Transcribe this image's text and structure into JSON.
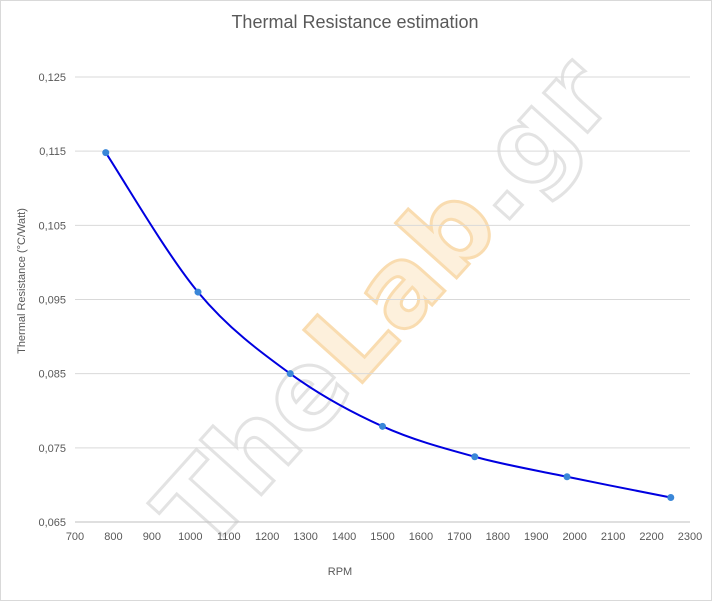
{
  "chart_data": {
    "type": "scatter",
    "title": "Thermal Resistance estimation",
    "xlabel": "RPM",
    "ylabel": "Thermal Resistance (°C/Watt)",
    "xlim": [
      700,
      2300
    ],
    "ylim": [
      0.065,
      0.125
    ],
    "x_ticks": [
      "700",
      "800",
      "900",
      "1000",
      "1100",
      "1200",
      "1300",
      "1400",
      "1500",
      "1600",
      "1700",
      "1800",
      "1900",
      "2000",
      "2100",
      "2200",
      "2300"
    ],
    "y_ticks": [
      "0,065",
      "0,075",
      "0,085",
      "0,095",
      "0,105",
      "0,115",
      "0,125"
    ],
    "grid": "horizontal",
    "series": [
      {
        "x": [
          780,
          1020,
          1260,
          1500,
          1740,
          1980,
          2250
        ],
        "y": [
          0.1148,
          0.096,
          0.085,
          0.0779,
          0.0738,
          0.0711,
          0.0683
        ],
        "marker_color": "#3a87d8",
        "trendline_color": "#0000e0"
      }
    ]
  },
  "watermark": {
    "text_main": "The",
    "text_accent": "Lab",
    "text_tail": ".gr"
  },
  "colors": {
    "grid": "#d9d9d9",
    "text": "#595959"
  }
}
